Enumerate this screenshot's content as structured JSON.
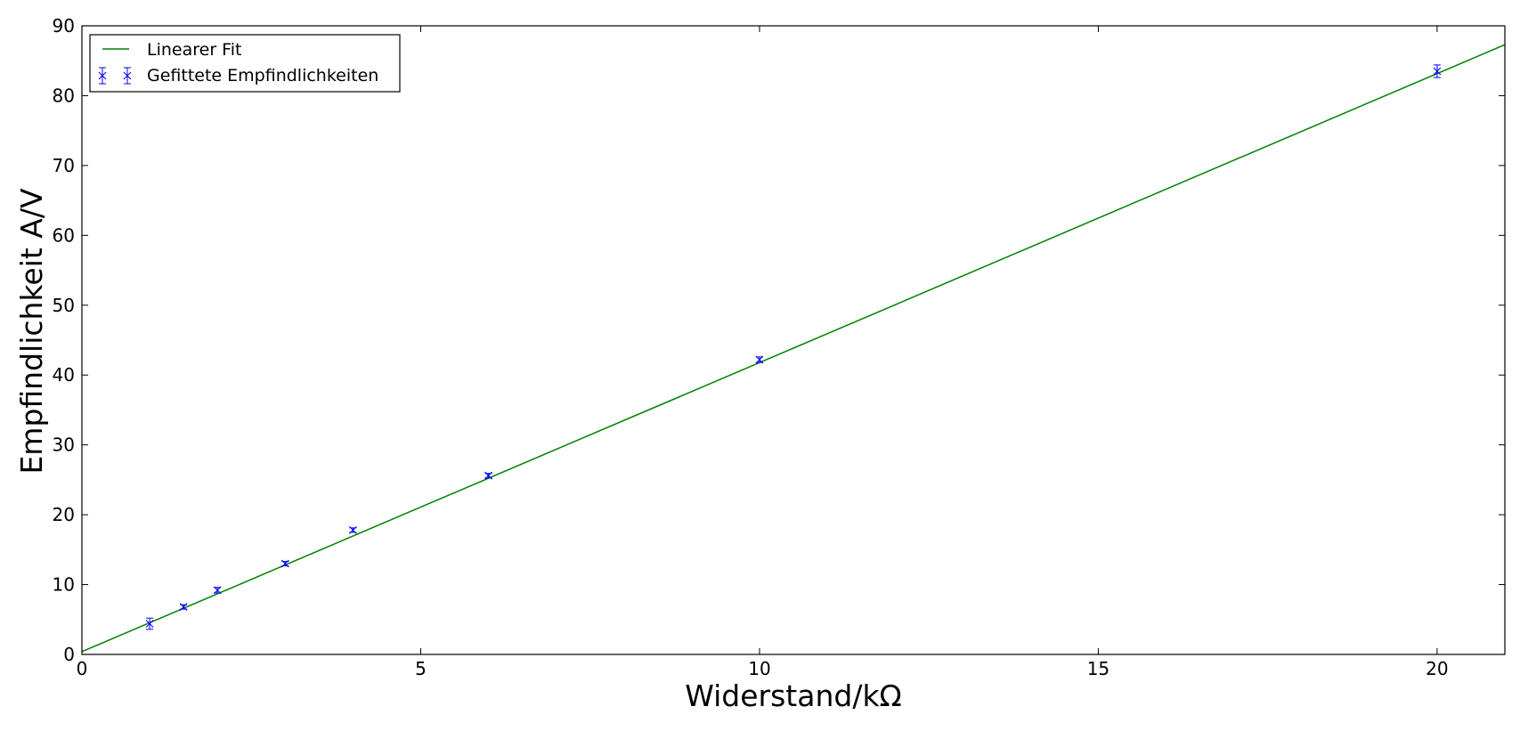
{
  "chart_data": {
    "type": "scatter",
    "xlabel": "Widerstand/kΩ",
    "ylabel": "Empfindlichkeit A/V",
    "xlim": [
      0,
      21
    ],
    "ylim": [
      0,
      90
    ],
    "xticks": [
      0,
      5,
      10,
      15,
      20
    ],
    "yticks": [
      0,
      10,
      20,
      30,
      40,
      50,
      60,
      70,
      80,
      90
    ],
    "grid": false,
    "legend_position": "top-left",
    "series": [
      {
        "name": "Linearer Fit",
        "kind": "line",
        "color": "#008000",
        "x": [
          0,
          21
        ],
        "y": [
          0.4,
          87.3
        ]
      },
      {
        "name": "Gefittete Empfindlichkeiten",
        "kind": "errorbar",
        "marker": "x",
        "color": "#0000ff",
        "x": [
          1,
          1.5,
          2,
          3,
          4,
          6,
          10,
          20
        ],
        "y": [
          4.4,
          6.8,
          9.2,
          13.0,
          17.8,
          25.6,
          42.2,
          83.5
        ],
        "yerr": [
          0.8,
          0.3,
          0.4,
          0.3,
          0.3,
          0.3,
          0.4,
          0.9
        ]
      }
    ]
  }
}
